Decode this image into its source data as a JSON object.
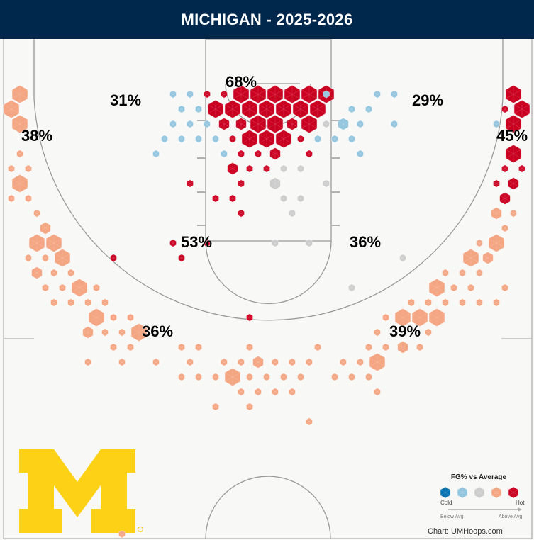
{
  "header": {
    "title": "MICHIGAN - 2025-2026"
  },
  "colors": {
    "header_bg": "#00274c",
    "court_bg": "#f8f8f6",
    "line": "#b0b0b0",
    "logo": "#fdd116",
    "categories": [
      "#0571b0",
      "#92c5de",
      "#cccccc",
      "#f4a582",
      "#ca0020"
    ]
  },
  "legend": {
    "title": "FG% vs Average",
    "cold": "Cold",
    "hot": "Hot",
    "below": "Below Avg",
    "above": "Above Avg"
  },
  "credit": "Chart: UMHoops.com",
  "logo": {
    "text": "M",
    "mark": "®"
  },
  "chart_data": {
    "type": "hexbin",
    "title": "MICHIGAN - 2025-2026",
    "encoding": {
      "bin": "[column, row, size_class(1=small,2=medium,3=large), category(0=cold..4=hot)]"
    },
    "zone_labels": [
      {
        "zone": "restricted-area",
        "text": "68%"
      },
      {
        "zone": "left-wing-mid-top",
        "text": "31%"
      },
      {
        "zone": "right-wing-mid-top",
        "text": "29%"
      },
      {
        "zone": "left-corner-three",
        "text": "38%"
      },
      {
        "zone": "right-corner-three",
        "text": "45%"
      },
      {
        "zone": "left-midrange",
        "text": "53%"
      },
      {
        "zone": "right-midrange",
        "text": "36%"
      },
      {
        "zone": "left-wing-three",
        "text": "36%"
      },
      {
        "zone": "right-wing-three",
        "text": "39%"
      }
    ],
    "bins": [
      [
        28,
        0,
        3,
        4
      ],
      [
        30,
        0,
        3,
        4
      ],
      [
        32,
        0,
        3,
        4
      ],
      [
        34,
        0,
        3,
        4
      ],
      [
        36,
        0,
        3,
        4
      ],
      [
        38,
        0,
        3,
        4
      ],
      [
        24,
        0,
        1,
        4
      ],
      [
        26,
        0,
        1,
        4
      ],
      [
        20,
        0,
        1,
        1
      ],
      [
        22,
        0,
        1,
        1
      ],
      [
        44,
        0,
        1,
        1
      ],
      [
        46,
        0,
        1,
        1
      ],
      [
        60,
        0,
        3,
        4
      ],
      [
        2,
        0,
        3,
        3
      ],
      [
        38,
        0,
        1,
        1
      ],
      [
        25,
        1,
        3,
        4
      ],
      [
        27,
        1,
        3,
        4
      ],
      [
        29,
        1,
        3,
        4
      ],
      [
        31,
        1,
        3,
        4
      ],
      [
        33,
        1,
        3,
        4
      ],
      [
        35,
        1,
        3,
        4
      ],
      [
        37,
        1,
        3,
        4
      ],
      [
        21,
        1,
        1,
        1
      ],
      [
        23,
        1,
        1,
        1
      ],
      [
        41,
        1,
        1,
        1
      ],
      [
        43,
        1,
        1,
        1
      ],
      [
        59,
        1,
        1,
        4
      ],
      [
        61,
        1,
        3,
        4
      ],
      [
        1,
        1,
        3,
        3
      ],
      [
        20,
        2,
        1,
        1
      ],
      [
        22,
        2,
        1,
        1
      ],
      [
        24,
        2,
        1,
        1
      ],
      [
        26,
        2,
        2,
        4
      ],
      [
        28,
        2,
        2,
        4
      ],
      [
        30,
        2,
        3,
        4
      ],
      [
        32,
        2,
        3,
        4
      ],
      [
        34,
        2,
        2,
        4
      ],
      [
        36,
        2,
        3,
        4
      ],
      [
        38,
        2,
        1,
        2
      ],
      [
        40,
        2,
        2,
        1
      ],
      [
        42,
        2,
        1,
        1
      ],
      [
        46,
        2,
        1,
        1
      ],
      [
        58,
        2,
        1,
        1
      ],
      [
        60,
        2,
        3,
        4
      ],
      [
        2,
        2,
        3,
        3
      ],
      [
        19,
        3,
        1,
        1
      ],
      [
        21,
        3,
        1,
        1
      ],
      [
        23,
        3,
        1,
        1
      ],
      [
        25,
        3,
        1,
        1
      ],
      [
        27,
        3,
        1,
        4
      ],
      [
        29,
        3,
        3,
        4
      ],
      [
        31,
        3,
        3,
        4
      ],
      [
        33,
        3,
        3,
        4
      ],
      [
        35,
        3,
        1,
        4
      ],
      [
        37,
        3,
        1,
        1
      ],
      [
        39,
        3,
        1,
        1
      ],
      [
        41,
        3,
        1,
        1
      ],
      [
        18,
        4,
        1,
        1
      ],
      [
        26,
        4,
        1,
        1
      ],
      [
        28,
        4,
        1,
        4
      ],
      [
        30,
        4,
        1,
        4
      ],
      [
        32,
        4,
        2,
        4
      ],
      [
        36,
        4,
        1,
        4
      ],
      [
        42,
        4,
        1,
        1
      ],
      [
        60,
        4,
        3,
        4
      ],
      [
        2,
        4,
        1,
        3
      ],
      [
        27,
        5,
        2,
        4
      ],
      [
        29,
        5,
        1,
        4
      ],
      [
        31,
        5,
        1,
        4
      ],
      [
        33,
        5,
        1,
        2
      ],
      [
        35,
        5,
        1,
        2
      ],
      [
        1,
        5,
        1,
        3
      ],
      [
        3,
        5,
        1,
        3
      ],
      [
        59,
        5,
        1,
        4
      ],
      [
        61,
        5,
        1,
        4
      ],
      [
        22,
        6,
        1,
        4
      ],
      [
        28,
        6,
        1,
        4
      ],
      [
        32,
        6,
        2,
        2
      ],
      [
        38,
        6,
        1,
        2
      ],
      [
        2,
        6,
        3,
        3
      ],
      [
        58,
        6,
        1,
        4
      ],
      [
        60,
        6,
        2,
        4
      ],
      [
        25,
        7,
        1,
        4
      ],
      [
        27,
        7,
        1,
        4
      ],
      [
        33,
        7,
        1,
        2
      ],
      [
        35,
        7,
        1,
        2
      ],
      [
        1,
        7,
        1,
        3
      ],
      [
        3,
        7,
        1,
        3
      ],
      [
        59,
        7,
        2,
        4
      ],
      [
        28,
        8,
        1,
        4
      ],
      [
        34,
        8,
        1,
        2
      ],
      [
        4,
        8,
        1,
        3
      ],
      [
        58,
        8,
        2,
        3
      ],
      [
        60,
        8,
        1,
        3
      ],
      [
        5,
        9,
        2,
        3
      ],
      [
        59,
        9,
        1,
        3
      ],
      [
        4,
        10,
        3,
        3
      ],
      [
        6,
        10,
        3,
        3
      ],
      [
        20,
        10,
        1,
        4
      ],
      [
        24,
        10,
        1,
        4
      ],
      [
        32,
        10,
        1,
        2
      ],
      [
        36,
        10,
        1,
        2
      ],
      [
        56,
        10,
        1,
        3
      ],
      [
        58,
        10,
        3,
        3
      ],
      [
        3,
        11,
        1,
        3
      ],
      [
        5,
        11,
        1,
        3
      ],
      [
        7,
        11,
        3,
        3
      ],
      [
        13,
        11,
        1,
        4
      ],
      [
        21,
        11,
        1,
        4
      ],
      [
        47,
        11,
        1,
        2
      ],
      [
        55,
        11,
        3,
        3
      ],
      [
        57,
        11,
        2,
        3
      ],
      [
        4,
        12,
        2,
        3
      ],
      [
        6,
        12,
        1,
        3
      ],
      [
        8,
        12,
        1,
        3
      ],
      [
        52,
        12,
        1,
        3
      ],
      [
        54,
        12,
        1,
        3
      ],
      [
        56,
        12,
        1,
        3
      ],
      [
        5,
        13,
        1,
        3
      ],
      [
        7,
        13,
        1,
        3
      ],
      [
        9,
        13,
        3,
        3
      ],
      [
        11,
        13,
        1,
        3
      ],
      [
        41,
        13,
        1,
        2
      ],
      [
        51,
        13,
        3,
        3
      ],
      [
        53,
        13,
        1,
        3
      ],
      [
        55,
        13,
        1,
        3
      ],
      [
        59,
        13,
        1,
        3
      ],
      [
        6,
        14,
        1,
        3
      ],
      [
        8,
        14,
        1,
        3
      ],
      [
        10,
        14,
        1,
        3
      ],
      [
        12,
        14,
        1,
        3
      ],
      [
        48,
        14,
        1,
        3
      ],
      [
        50,
        14,
        1,
        3
      ],
      [
        52,
        14,
        1,
        3
      ],
      [
        54,
        14,
        1,
        3
      ],
      [
        56,
        14,
        1,
        3
      ],
      [
        58,
        14,
        1,
        3
      ],
      [
        11,
        15,
        3,
        3
      ],
      [
        13,
        15,
        1,
        3
      ],
      [
        15,
        15,
        1,
        3
      ],
      [
        29,
        15,
        1,
        4
      ],
      [
        45,
        15,
        1,
        3
      ],
      [
        47,
        15,
        3,
        3
      ],
      [
        49,
        15,
        3,
        3
      ],
      [
        51,
        15,
        3,
        3
      ],
      [
        10,
        16,
        2,
        3
      ],
      [
        12,
        16,
        1,
        3
      ],
      [
        14,
        16,
        1,
        3
      ],
      [
        16,
        16,
        3,
        3
      ],
      [
        44,
        16,
        1,
        3
      ],
      [
        50,
        16,
        1,
        3
      ],
      [
        13,
        17,
        1,
        3
      ],
      [
        15,
        17,
        1,
        3
      ],
      [
        21,
        17,
        1,
        3
      ],
      [
        23,
        17,
        1,
        3
      ],
      [
        29,
        17,
        1,
        3
      ],
      [
        37,
        17,
        1,
        3
      ],
      [
        43,
        17,
        1,
        3
      ],
      [
        45,
        17,
        1,
        3
      ],
      [
        47,
        17,
        2,
        3
      ],
      [
        49,
        17,
        1,
        3
      ],
      [
        10,
        18,
        1,
        3
      ],
      [
        14,
        18,
        1,
        3
      ],
      [
        18,
        18,
        1,
        3
      ],
      [
        22,
        18,
        1,
        3
      ],
      [
        26,
        18,
        1,
        3
      ],
      [
        28,
        18,
        1,
        3
      ],
      [
        30,
        18,
        2,
        3
      ],
      [
        32,
        18,
        1,
        3
      ],
      [
        34,
        18,
        1,
        3
      ],
      [
        36,
        18,
        1,
        3
      ],
      [
        40,
        18,
        1,
        3
      ],
      [
        42,
        18,
        1,
        3
      ],
      [
        44,
        18,
        3,
        3
      ],
      [
        21,
        19,
        1,
        3
      ],
      [
        23,
        19,
        1,
        3
      ],
      [
        25,
        19,
        1,
        3
      ],
      [
        27,
        19,
        3,
        3
      ],
      [
        29,
        19,
        1,
        3
      ],
      [
        31,
        19,
        1,
        3
      ],
      [
        33,
        19,
        1,
        3
      ],
      [
        35,
        19,
        1,
        3
      ],
      [
        39,
        19,
        1,
        3
      ],
      [
        41,
        19,
        1,
        3
      ],
      [
        43,
        19,
        1,
        3
      ],
      [
        28,
        20,
        1,
        3
      ],
      [
        30,
        20,
        1,
        3
      ],
      [
        32,
        20,
        1,
        3
      ],
      [
        34,
        20,
        1,
        3
      ],
      [
        44,
        20,
        1,
        3
      ],
      [
        25,
        21,
        1,
        3
      ],
      [
        29,
        21,
        1,
        3
      ],
      [
        36,
        22,
        1,
        3
      ],
      [
        14,
        30,
        1,
        3
      ]
    ]
  }
}
